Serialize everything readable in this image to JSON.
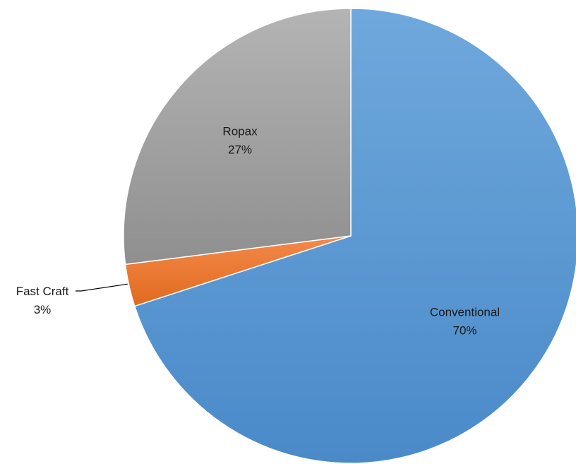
{
  "chart_data": {
    "type": "pie",
    "title": "",
    "categories": [
      "Conventional",
      "Fast Craft",
      "Ropax"
    ],
    "values": [
      70,
      3,
      27
    ],
    "labels": [
      {
        "name": "Conventional",
        "value_text": "70%"
      },
      {
        "name": "Fast Craft",
        "value_text": "3%"
      },
      {
        "name": "Ropax",
        "value_text": "27%"
      }
    ],
    "colors": [
      "#5b9bd5",
      "#ed7d31",
      "#a5a5a5"
    ],
    "legend": "none"
  }
}
